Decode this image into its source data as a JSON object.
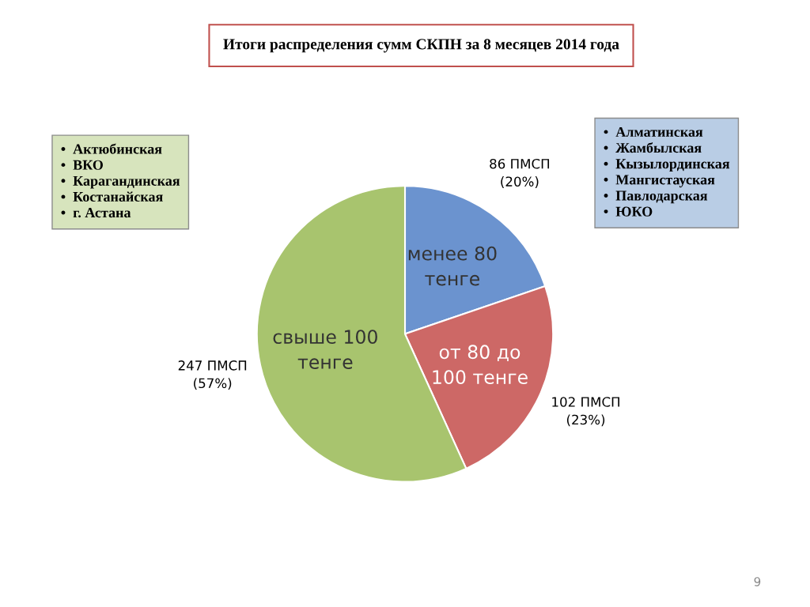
{
  "chart_data": {
    "type": "pie",
    "title": "Итоги распределения сумм СКПН за 8 месяцев 2014 года",
    "categories": [
      "менее 80\nтенге",
      "от 80 до\n100 тенге",
      "свыше 100\nтенге"
    ],
    "values": [
      86,
      102,
      247
    ],
    "colors": [
      "#6b93cf",
      "#cd6866",
      "#a8c46e"
    ],
    "value_labels": [
      "86 ПМСП\n(20%)",
      "102 ПМСП\n(23%)",
      "247 ПМСП\n(57%)"
    ],
    "annotations": [
      "•  Актюбинская\n•  ВКО\n•  Карагандинская\n•  Костанайская\n•  г. Астана",
      "•  Алматинская\n•  Жамбылская\n•  Кызылординская\n•  Мангистауская\n•  Павлодарская\n•  ЮКО",
      "9"
    ]
  }
}
